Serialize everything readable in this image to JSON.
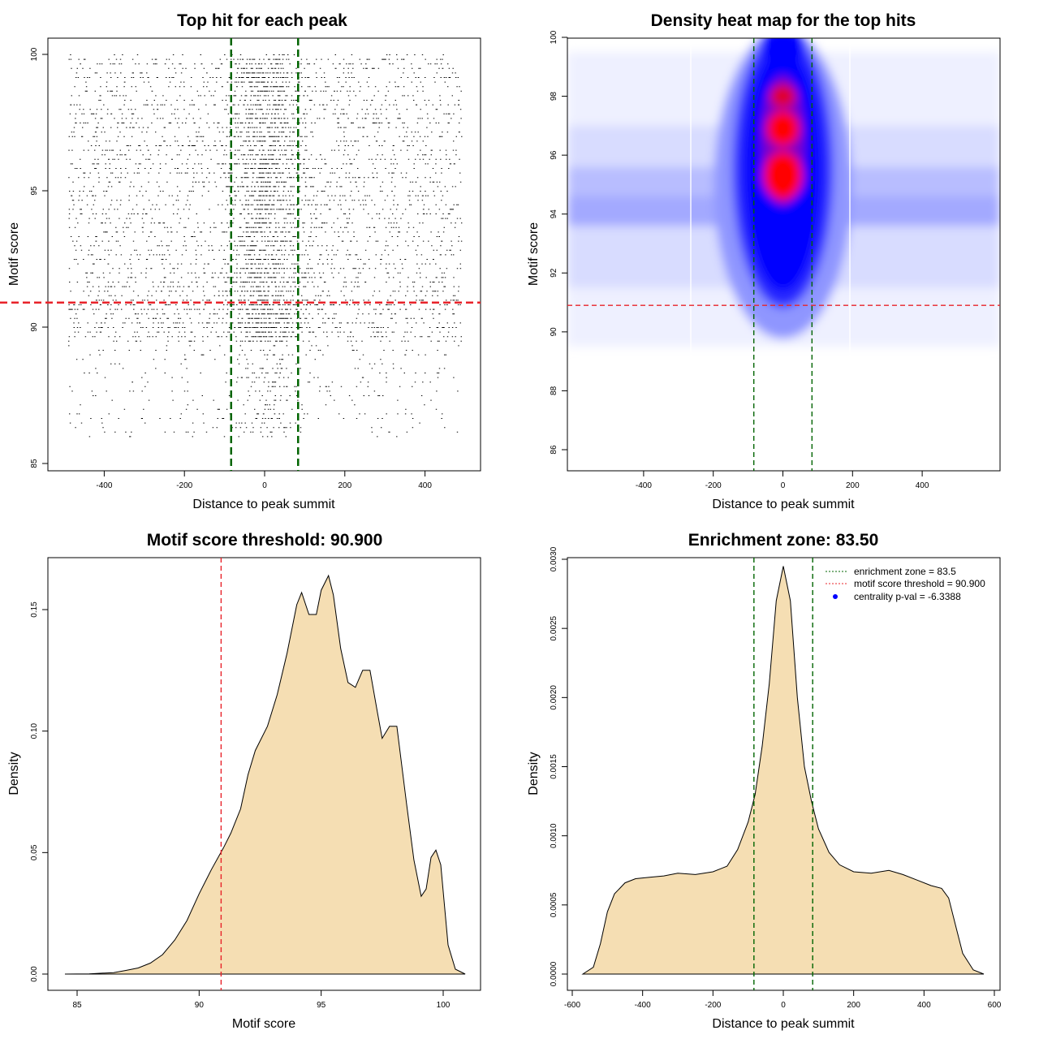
{
  "chart_data": [
    {
      "type": "scatter",
      "title": "Top hit for each peak",
      "xlabel": "Distance to peak summit",
      "ylabel": "Motif score",
      "xlim": [
        -500,
        500
      ],
      "ylim": [
        85,
        100
      ],
      "x_ticks": [
        "-400",
        "-200",
        "0",
        "200",
        "400"
      ],
      "y_ticks": [
        "85",
        "90",
        "95",
        "100"
      ],
      "vlines": [
        -83.5,
        83.5
      ],
      "hline": 90.9,
      "line_colors": {
        "vertical": "#006400",
        "horizontal": "#e8232a"
      }
    },
    {
      "type": "heatmap",
      "title": "Density heat map for the top hits",
      "xlabel": "Distance to peak summit",
      "ylabel": "Motif score",
      "xlim": [
        -500,
        500
      ],
      "ylim": [
        85.3,
        100
      ],
      "x_ticks": [
        "-400",
        "-200",
        "0",
        "200",
        "400"
      ],
      "y_ticks": [
        "86",
        "88",
        "90",
        "92",
        "94",
        "96",
        "98",
        "100"
      ],
      "vlines": [
        -83.5,
        83.5
      ],
      "hline": 90.9,
      "color_scale": [
        "#ffffff",
        "#0000ff",
        "#ff0000"
      ]
    },
    {
      "type": "area",
      "title": "Motif score threshold: 90.900",
      "xlabel": "Motif score",
      "ylabel": "Density",
      "xlim": [
        84.5,
        101
      ],
      "ylim": [
        0,
        0.17
      ],
      "x_ticks": [
        "85",
        "90",
        "95",
        "100"
      ],
      "y_ticks": [
        "0.00",
        "0.05",
        "0.10",
        "0.15"
      ],
      "vline": 90.9,
      "fill": "#f5deb3",
      "x": [
        84.5,
        85.5,
        86.5,
        87,
        87.5,
        88,
        88.5,
        89,
        89.5,
        90,
        90.5,
        91,
        91.3,
        91.7,
        92,
        92.3,
        92.5,
        92.8,
        93.2,
        93.6,
        94,
        94.2,
        94.5,
        94.8,
        95,
        95.3,
        95.5,
        95.8,
        96.1,
        96.4,
        96.7,
        97,
        97.3,
        97.5,
        97.8,
        98.1,
        98.5,
        98.8,
        99.1,
        99.3,
        99.5,
        99.7,
        99.9,
        100.2,
        100.5,
        100.9
      ],
      "values": [
        0.0,
        0.0001,
        0.0006,
        0.0015,
        0.0025,
        0.0045,
        0.008,
        0.014,
        0.022,
        0.033,
        0.043,
        0.052,
        0.058,
        0.068,
        0.082,
        0.092,
        0.096,
        0.102,
        0.115,
        0.132,
        0.152,
        0.157,
        0.148,
        0.148,
        0.158,
        0.164,
        0.156,
        0.134,
        0.12,
        0.118,
        0.125,
        0.125,
        0.108,
        0.097,
        0.102,
        0.102,
        0.07,
        0.047,
        0.032,
        0.035,
        0.048,
        0.051,
        0.045,
        0.012,
        0.002,
        0.0
      ]
    },
    {
      "type": "area",
      "title": "Enrichment zone: 83.50",
      "xlabel": "Distance to peak summit",
      "ylabel": "Density",
      "xlim": [
        -610,
        610
      ],
      "ylim": [
        0,
        0.0031
      ],
      "x_ticks": [
        "-600",
        "-400",
        "-200",
        "0",
        "200",
        "400",
        "600"
      ],
      "y_ticks": [
        "0.0000",
        "0.0005",
        "0.0010",
        "0.0015",
        "0.0020",
        "0.0025",
        "0.0030"
      ],
      "vlines": [
        -83.5,
        83.5
      ],
      "fill": "#f5deb3",
      "x": [
        -570,
        -540,
        -520,
        -500,
        -480,
        -450,
        -420,
        -380,
        -340,
        -300,
        -250,
        -200,
        -160,
        -130,
        -100,
        -80,
        -60,
        -40,
        -20,
        0,
        20,
        40,
        60,
        80,
        100,
        130,
        160,
        200,
        250,
        300,
        340,
        380,
        420,
        450,
        470,
        490,
        510,
        540,
        570
      ],
      "values": [
        0.0,
        5e-05,
        0.00022,
        0.00045,
        0.00058,
        0.00066,
        0.00069,
        0.0007,
        0.00071,
        0.00073,
        0.00072,
        0.00074,
        0.00078,
        0.0009,
        0.0011,
        0.0013,
        0.00165,
        0.0021,
        0.0027,
        0.00295,
        0.0027,
        0.002,
        0.0015,
        0.00125,
        0.00105,
        0.00088,
        0.00079,
        0.00074,
        0.00073,
        0.00075,
        0.00072,
        0.00068,
        0.00064,
        0.00062,
        0.00055,
        0.00035,
        0.00015,
        3e-05,
        0.0
      ],
      "legend": [
        "enrichment zone = 83.5",
        "motif score threshold = 90.900",
        "centrality p-val = -6.3388"
      ],
      "legend_position": "top-right"
    }
  ]
}
